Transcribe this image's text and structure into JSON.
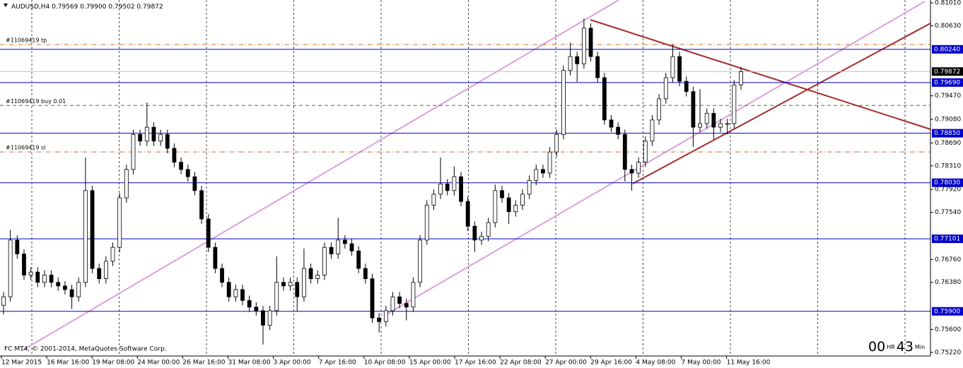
{
  "chart_data": {
    "type": "candlestick",
    "title": "AUDUSD,H4",
    "quote": {
      "values": [
        0.79569,
        0.799,
        0.79502,
        0.79872
      ],
      "value_labels": [
        "0.79569",
        "0.79900",
        "0.79502",
        "0.79872"
      ]
    },
    "ylim": [
      0.7516,
      0.81057
    ],
    "yticks": [
      {
        "value": 0.8101,
        "label": "0.81010"
      },
      {
        "value": 0.8063,
        "label": "0.80630"
      },
      {
        "value": 0.7947,
        "label": "0.79470"
      },
      {
        "value": 0.7908,
        "label": "0.79080"
      },
      {
        "value": 0.7869,
        "label": "0.78690"
      },
      {
        "value": 0.7831,
        "label": "0.78310"
      },
      {
        "value": 0.7792,
        "label": "0.77920"
      },
      {
        "value": 0.7754,
        "label": "0.77540"
      },
      {
        "value": 0.7676,
        "label": "0.76760"
      },
      {
        "value": 0.7638,
        "label": "0.76380"
      },
      {
        "value": 0.756,
        "label": "0.75600"
      },
      {
        "value": 0.7522,
        "label": "0.75220"
      }
    ],
    "hlines": {
      "color": "#0000c8",
      "values": [
        {
          "value": 0.8024,
          "label": "0.80240"
        },
        {
          "value": 0.7969,
          "label": "0.79690"
        },
        {
          "value": 0.7885,
          "label": "0.78850"
        },
        {
          "value": 0.7803,
          "label": "0.78030"
        },
        0.77101,
        {
          "value": 0.759,
          "label": "0.75900"
        }
      ]
    },
    "orders": [
      {
        "label": "#11069419 tp",
        "price": 0.8032,
        "color": "#d2691e"
      },
      {
        "label": "#11069419 buy 0.01",
        "price": 0.7931,
        "color": "#228b22"
      },
      {
        "label": "#11069419 sl",
        "price": 0.7854,
        "color": "#d2691e"
      }
    ],
    "xlabels": [
      "12 Mar 2015",
      "16 Mar 16:00",
      "19 Mar 08:00",
      "24 Mar 00:00",
      "26 Mar 16:00",
      "31 Mar 08:00",
      "3 Apr 00:00",
      "7 Apr 16:00",
      "10 Apr 08:00",
      "15 Apr 00:00",
      "17 Apr 16:00",
      "22 Apr 08:00",
      "27 Apr 00:00",
      "29 Apr 16:00",
      "4 May 08:00",
      "7 May 00:00",
      "11 May 16:00"
    ],
    "copyright": "FC MT4, © 2001-2014, MetaQuotes Software Corp.",
    "timer": {
      "hours": "00",
      "hours_unit": "HR",
      "minutes": 43,
      "minutes_unit": "Min"
    },
    "ohlc": [
      [
        0.76,
        0.7622,
        0.7585,
        0.7614
      ],
      [
        0.7614,
        0.7725,
        0.7606,
        0.7708
      ],
      [
        0.7708,
        0.7716,
        0.7677,
        0.7685
      ],
      [
        0.7685,
        0.7693,
        0.7642,
        0.765
      ],
      [
        0.765,
        0.7663,
        0.7642,
        0.7655
      ],
      [
        0.7655,
        0.7663,
        0.763,
        0.7638
      ],
      [
        0.7638,
        0.7658,
        0.763,
        0.765
      ],
      [
        0.765,
        0.7658,
        0.763,
        0.7638
      ],
      [
        0.7638,
        0.7646,
        0.7624,
        0.7632
      ],
      [
        0.7632,
        0.764,
        0.7618,
        0.7626
      ],
      [
        0.7626,
        0.7634,
        0.7594,
        0.7614
      ],
      [
        0.7614,
        0.7646,
        0.7606,
        0.7638
      ],
      [
        0.7638,
        0.7845,
        0.763,
        0.779
      ],
      [
        0.779,
        0.7798,
        0.7653,
        0.7661
      ],
      [
        0.7661,
        0.7669,
        0.7636,
        0.7644
      ],
      [
        0.7644,
        0.7681,
        0.7636,
        0.7673
      ],
      [
        0.7673,
        0.7704,
        0.7665,
        0.7696
      ],
      [
        0.7696,
        0.7786,
        0.7688,
        0.7778
      ],
      [
        0.7778,
        0.7833,
        0.777,
        0.7825
      ],
      [
        0.7825,
        0.7891,
        0.7817,
        0.7883
      ],
      [
        0.7883,
        0.7891,
        0.7864,
        0.7872
      ],
      [
        0.7872,
        0.7936,
        0.7864,
        0.7895
      ],
      [
        0.7895,
        0.7903,
        0.7864,
        0.7872
      ],
      [
        0.7872,
        0.7891,
        0.7864,
        0.7883
      ],
      [
        0.7883,
        0.7891,
        0.7852,
        0.786
      ],
      [
        0.786,
        0.7868,
        0.7829,
        0.7837
      ],
      [
        0.7837,
        0.7845,
        0.7817,
        0.7825
      ],
      [
        0.7825,
        0.7833,
        0.7805,
        0.7813
      ],
      [
        0.7813,
        0.7821,
        0.7782,
        0.779
      ],
      [
        0.779,
        0.7798,
        0.7735,
        0.7743
      ],
      [
        0.7743,
        0.7751,
        0.7688,
        0.7696
      ],
      [
        0.7696,
        0.7704,
        0.7653,
        0.7661
      ],
      [
        0.7661,
        0.7669,
        0.763,
        0.7638
      ],
      [
        0.7638,
        0.7646,
        0.7606,
        0.7614
      ],
      [
        0.7614,
        0.7634,
        0.7606,
        0.7626
      ],
      [
        0.7626,
        0.7634,
        0.76,
        0.7608
      ],
      [
        0.7608,
        0.7616,
        0.7589,
        0.7597
      ],
      [
        0.7597,
        0.7605,
        0.7583,
        0.7591
      ],
      [
        0.7591,
        0.7599,
        0.7535,
        0.7567
      ],
      [
        0.7567,
        0.7599,
        0.7559,
        0.7591
      ],
      [
        0.7591,
        0.7681,
        0.7583,
        0.7638
      ],
      [
        0.7638,
        0.7646,
        0.7624,
        0.7632
      ],
      [
        0.7632,
        0.7646,
        0.7624,
        0.7638
      ],
      [
        0.7638,
        0.7646,
        0.759,
        0.7614
      ],
      [
        0.7614,
        0.7694,
        0.7606,
        0.7661
      ],
      [
        0.7661,
        0.7669,
        0.7636,
        0.7644
      ],
      [
        0.7644,
        0.7658,
        0.7636,
        0.765
      ],
      [
        0.765,
        0.7704,
        0.7642,
        0.7696
      ],
      [
        0.7696,
        0.7704,
        0.7677,
        0.7685
      ],
      [
        0.7685,
        0.7745,
        0.7677,
        0.7708
      ],
      [
        0.7708,
        0.7716,
        0.7694,
        0.7702
      ],
      [
        0.7702,
        0.771,
        0.7682,
        0.769
      ],
      [
        0.769,
        0.7698,
        0.7653,
        0.7661
      ],
      [
        0.7661,
        0.7669,
        0.7636,
        0.7644
      ],
      [
        0.7644,
        0.7652,
        0.7571,
        0.7579
      ],
      [
        0.7579,
        0.7587,
        0.7555,
        0.7573
      ],
      [
        0.7573,
        0.7599,
        0.7565,
        0.7591
      ],
      [
        0.7591,
        0.7622,
        0.7583,
        0.7614
      ],
      [
        0.7614,
        0.7622,
        0.7595,
        0.7603
      ],
      [
        0.7603,
        0.7611,
        0.7575,
        0.7597
      ],
      [
        0.7597,
        0.7646,
        0.7589,
        0.7638
      ],
      [
        0.7638,
        0.7716,
        0.763,
        0.7708
      ],
      [
        0.7708,
        0.7774,
        0.77,
        0.7766
      ],
      [
        0.7766,
        0.7792,
        0.7758,
        0.7784
      ],
      [
        0.7784,
        0.7845,
        0.7776,
        0.7801
      ],
      [
        0.7801,
        0.7809,
        0.7782,
        0.779
      ],
      [
        0.779,
        0.783,
        0.7782,
        0.7813
      ],
      [
        0.7813,
        0.7821,
        0.7764,
        0.7772
      ],
      [
        0.7772,
        0.778,
        0.7723,
        0.7731
      ],
      [
        0.7731,
        0.7739,
        0.7688,
        0.7708
      ],
      [
        0.7708,
        0.7722,
        0.77,
        0.7714
      ],
      [
        0.7714,
        0.7745,
        0.7706,
        0.7737
      ],
      [
        0.7737,
        0.78,
        0.7729,
        0.779
      ],
      [
        0.779,
        0.7798,
        0.777,
        0.7778
      ],
      [
        0.7778,
        0.7786,
        0.7735,
        0.7755
      ],
      [
        0.7755,
        0.7774,
        0.7747,
        0.7766
      ],
      [
        0.7766,
        0.7792,
        0.7758,
        0.7784
      ],
      [
        0.7784,
        0.7815,
        0.7776,
        0.7807
      ],
      [
        0.7807,
        0.7833,
        0.7799,
        0.7825
      ],
      [
        0.7825,
        0.7833,
        0.7811,
        0.7819
      ],
      [
        0.7819,
        0.7862,
        0.7811,
        0.7854
      ],
      [
        0.7854,
        0.7891,
        0.7846,
        0.7883
      ],
      [
        0.7883,
        0.7997,
        0.7875,
        0.7989
      ],
      [
        0.7989,
        0.8035,
        0.7981,
        0.8012
      ],
      [
        0.8012,
        0.802,
        0.797,
        0.8
      ],
      [
        0.8,
        0.8075,
        0.7992,
        0.8059
      ],
      [
        0.8059,
        0.8067,
        0.8004,
        0.8012
      ],
      [
        0.8012,
        0.802,
        0.7969,
        0.7977
      ],
      [
        0.7977,
        0.7985,
        0.7899,
        0.7907
      ],
      [
        0.7907,
        0.7915,
        0.7887,
        0.7895
      ],
      [
        0.7895,
        0.7903,
        0.7875,
        0.7883
      ],
      [
        0.7883,
        0.7891,
        0.7805,
        0.7825
      ],
      [
        0.7825,
        0.7833,
        0.779,
        0.7819
      ],
      [
        0.7819,
        0.7845,
        0.7811,
        0.7837
      ],
      [
        0.7837,
        0.788,
        0.7829,
        0.7872
      ],
      [
        0.7872,
        0.7915,
        0.7864,
        0.7907
      ],
      [
        0.7907,
        0.795,
        0.7899,
        0.7942
      ],
      [
        0.7942,
        0.7985,
        0.7934,
        0.7977
      ],
      [
        0.7977,
        0.8032,
        0.7969,
        0.8012
      ],
      [
        0.8012,
        0.802,
        0.7963,
        0.7971
      ],
      [
        0.7971,
        0.7979,
        0.7946,
        0.7954
      ],
      [
        0.7954,
        0.7962,
        0.7862,
        0.7895
      ],
      [
        0.7895,
        0.7958,
        0.7887,
        0.7901
      ],
      [
        0.7901,
        0.7926,
        0.7893,
        0.7918
      ],
      [
        0.7918,
        0.7926,
        0.7875,
        0.7895
      ],
      [
        0.7895,
        0.7909,
        0.7887,
        0.7901
      ],
      [
        0.7901,
        0.7909,
        0.7883,
        0.7901
      ],
      [
        0.7901,
        0.7973,
        0.7893,
        0.7965
      ],
      [
        0.7965,
        0.7995,
        0.7957,
        0.7987
      ]
    ]
  }
}
